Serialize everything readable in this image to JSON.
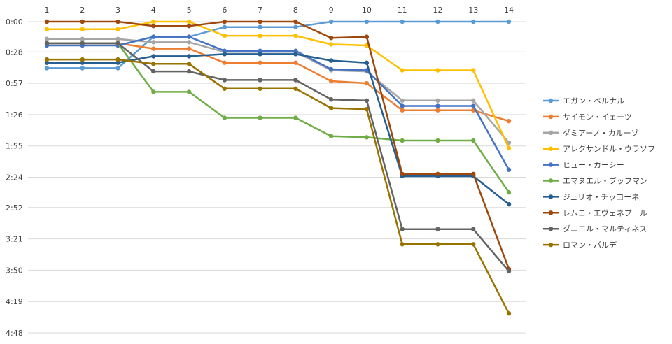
{
  "chart_data": {
    "type": "line",
    "title": "",
    "xlabel": "",
    "ylabel": "",
    "x_axis_position": "top",
    "y_reversed": true,
    "grid": true,
    "legend": "right",
    "x": [
      "1",
      "2",
      "3",
      "4",
      "5",
      "6",
      "7",
      "8",
      "9",
      "10",
      "11",
      "12",
      "13",
      "14"
    ],
    "y_ticks": [
      "0:00",
      "0:28",
      "0:57",
      "1:26",
      "1:55",
      "2:24",
      "2:52",
      "3:21",
      "3:50",
      "4:19",
      "4:48"
    ],
    "ylim": [
      "0:00",
      "4:48"
    ],
    "series": [
      {
        "name": "エガン・ベルナル",
        "color": "#5b9bd5",
        "values": [
          "0:43",
          "0:43",
          "0:43",
          "0:14",
          "0:14",
          "0:05",
          "0:05",
          "0:05",
          "0:00",
          "0:00",
          "0:00",
          "0:00",
          "0:00",
          "0:00"
        ]
      },
      {
        "name": "サイモン・イェーツ",
        "color": "#ed7d31",
        "values": [
          "0:20",
          "0:20",
          "0:20",
          "0:25",
          "0:25",
          "0:38",
          "0:38",
          "0:38",
          "0:55",
          "0:57",
          "1:22",
          "1:22",
          "1:22",
          "1:32"
        ]
      },
      {
        "name": "ダミアーノ・カルーゾ",
        "color": "#a5a5a5",
        "values": [
          "0:16",
          "0:16",
          "0:16",
          "0:19",
          "0:19",
          "0:28",
          "0:28",
          "0:28",
          "0:45",
          "0:46",
          "1:13",
          "1:13",
          "1:13",
          "1:52"
        ]
      },
      {
        "name": "アレクサンドル・ウラソフ",
        "color": "#ffc000",
        "values": [
          "0:07",
          "0:07",
          "0:07",
          "0:00",
          "0:00",
          "0:13",
          "0:13",
          "0:13",
          "0:21",
          "0:22",
          "0:45",
          "0:45",
          "0:45",
          "1:57"
        ]
      },
      {
        "name": "ヒュー・カーシー",
        "color": "#4472c4",
        "values": [
          "0:22",
          "0:22",
          "0:22",
          "0:14",
          "0:14",
          "0:27",
          "0:27",
          "0:27",
          "0:44",
          "0:45",
          "1:18",
          "1:18",
          "1:18",
          "2:17"
        ]
      },
      {
        "name": "エマヌエル・ブッフマン",
        "color": "#70ad47",
        "values": [
          "0:20",
          "0:20",
          "0:20",
          "0:65",
          "0:65",
          "1:29",
          "1:29",
          "1:29",
          "1:46",
          "1:47",
          "1:50",
          "1:50",
          "1:50",
          "2:38"
        ]
      },
      {
        "name": "ジュリオ・チッコーネ",
        "color": "#255e91",
        "values": [
          "0:38",
          "0:38",
          "0:38",
          "0:32",
          "0:32",
          "0:30",
          "0:30",
          "0:30",
          "0:36",
          "0:38",
          "2:23",
          "2:23",
          "2:23",
          "2:49"
        ]
      },
      {
        "name": "レムコ・エヴェネプール",
        "color": "#9e480e",
        "values": [
          "0:00",
          "0:00",
          "0:00",
          "0:04",
          "0:04",
          "0:00",
          "0:00",
          "0:00",
          "0:15",
          "0:14",
          "2:21",
          "2:21",
          "2:21",
          "3:49"
        ]
      },
      {
        "name": "ダニエル・マルティネス",
        "color": "#636363",
        "values": [
          "0:20",
          "0:20",
          "0:20",
          "0:46",
          "0:46",
          "0:54",
          "0:54",
          "0:54",
          "1:12",
          "1:13",
          "3:12",
          "3:12",
          "3:12",
          "3:51"
        ]
      },
      {
        "name": "ロマン・バルデ",
        "color": "#997300",
        "values": [
          "0:35",
          "0:35",
          "0:35",
          "0:39",
          "0:39",
          "1:02",
          "1:02",
          "1:02",
          "1:20",
          "1:21",
          "3:26",
          "3:26",
          "3:26",
          "4:30"
        ]
      }
    ]
  }
}
